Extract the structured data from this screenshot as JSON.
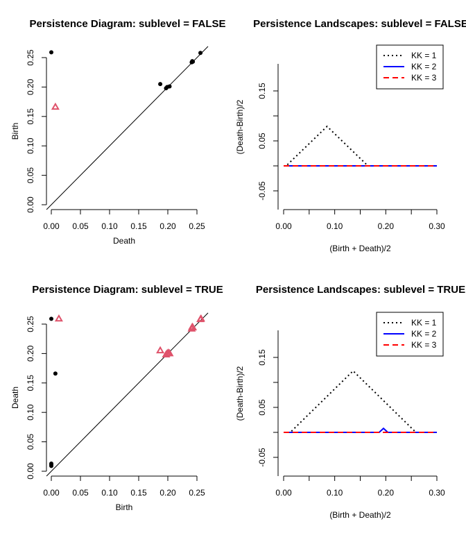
{
  "chart_data": [
    {
      "type": "scatter",
      "title": "Persistence Diagram: sublevel = FALSE",
      "xlabel": "Death",
      "ylabel": "Birth",
      "xlim": [
        0,
        0.26
      ],
      "ylim": [
        0,
        0.26
      ],
      "ticks": [
        "0.00",
        "0.05",
        "0.10",
        "0.15",
        "0.20",
        "0.25"
      ],
      "diagonal": true,
      "series": [
        {
          "dimension": 0,
          "marker": "filled-circle",
          "color": "#000000",
          "points": [
            [
              0.0,
              0.259
            ],
            [
              0.187,
              0.205
            ],
            [
              0.197,
              0.198
            ],
            [
              0.199,
              0.2
            ],
            [
              0.203,
              0.201
            ],
            [
              0.241,
              0.242
            ],
            [
              0.242,
              0.244
            ],
            [
              0.243,
              0.243
            ],
            [
              0.256,
              0.258
            ]
          ]
        },
        {
          "dimension": 1,
          "marker": "triangle",
          "color": "#DF536B",
          "points": [
            [
              0.007,
              0.166
            ]
          ]
        }
      ]
    },
    {
      "type": "line",
      "title": "Persistence Landscapes: sublevel = FALSE",
      "xlabel": "(Birth + Death)/2",
      "ylabel": "(Death-Birth)/2",
      "xlim": [
        0,
        0.3
      ],
      "ylim": [
        -0.07,
        0.2
      ],
      "xticks": [
        "0.00",
        "0.10",
        "0.20",
        "0.30"
      ],
      "yticks": [
        "-0.05",
        "0.05",
        "0.15"
      ],
      "legend": {
        "position": "top-right",
        "entries": [
          "KK = 1",
          "KK = 2",
          "KK = 3"
        ]
      },
      "series": [
        {
          "name": "KK = 1",
          "color": "#000000",
          "dash": "dotted",
          "x": [
            0.0,
            0.005,
            0.085,
            0.165,
            0.3
          ],
          "y": [
            0,
            0,
            0.079,
            0,
            0
          ]
        },
        {
          "name": "KK = 2",
          "color": "#0000FF",
          "dash": "solid",
          "x": [
            0.0,
            0.3
          ],
          "y": [
            0,
            0
          ]
        },
        {
          "name": "KK = 3",
          "color": "#FF0000",
          "dash": "dashed",
          "x": [
            0.0,
            0.3
          ],
          "y": [
            0,
            0
          ]
        }
      ]
    },
    {
      "type": "scatter",
      "title": "Persistence Diagram: sublevel = TRUE",
      "xlabel": "Birth",
      "ylabel": "Death",
      "xlim": [
        0,
        0.26
      ],
      "ylim": [
        0,
        0.26
      ],
      "ticks": [
        "0.00",
        "0.05",
        "0.10",
        "0.15",
        "0.20",
        "0.25"
      ],
      "diagonal": true,
      "series": [
        {
          "dimension": 0,
          "marker": "filled-circle",
          "color": "#000000",
          "points": [
            [
              0.0,
              0.259
            ],
            [
              0.007,
              0.166
            ],
            [
              0.0,
              0.013
            ],
            [
              0.0,
              0.011
            ],
            [
              0.0,
              0.009
            ]
          ]
        },
        {
          "dimension": 1,
          "marker": "triangle",
          "color": "#DF536B",
          "points": [
            [
              0.013,
              0.259
            ],
            [
              0.187,
              0.205
            ],
            [
              0.197,
              0.198
            ],
            [
              0.199,
              0.2
            ],
            [
              0.201,
              0.201
            ],
            [
              0.203,
              0.2
            ],
            [
              0.241,
              0.242
            ],
            [
              0.242,
              0.245
            ],
            [
              0.243,
              0.244
            ],
            [
              0.256,
              0.258
            ],
            [
              0.257,
              0.259
            ]
          ]
        }
      ]
    },
    {
      "type": "line",
      "title": "Persistence Landscapes: sublevel = TRUE",
      "xlabel": "(Birth + Death)/2",
      "ylabel": "(Death-Birth)/2",
      "xlim": [
        0,
        0.3
      ],
      "ylim": [
        -0.07,
        0.2
      ],
      "xticks": [
        "0.00",
        "0.10",
        "0.20",
        "0.30"
      ],
      "yticks": [
        "-0.05",
        "0.05",
        "0.15"
      ],
      "legend": {
        "position": "top-right",
        "entries": [
          "KK = 1",
          "KK = 2",
          "KK = 3"
        ]
      },
      "series": [
        {
          "name": "KK = 1",
          "color": "#000000",
          "dash": "dotted",
          "x": [
            0.0,
            0.013,
            0.136,
            0.259,
            0.3
          ],
          "y": [
            0,
            0,
            0.123,
            0,
            0
          ]
        },
        {
          "name": "KK = 2",
          "color": "#0000FF",
          "dash": "solid",
          "x": [
            0.0,
            0.187,
            0.1955,
            0.204,
            0.3
          ],
          "y": [
            0,
            0,
            0.008,
            0,
            0
          ]
        },
        {
          "name": "KK = 3",
          "color": "#FF0000",
          "dash": "dashed",
          "x": [
            0.0,
            0.3
          ],
          "y": [
            0,
            0
          ]
        }
      ]
    }
  ]
}
